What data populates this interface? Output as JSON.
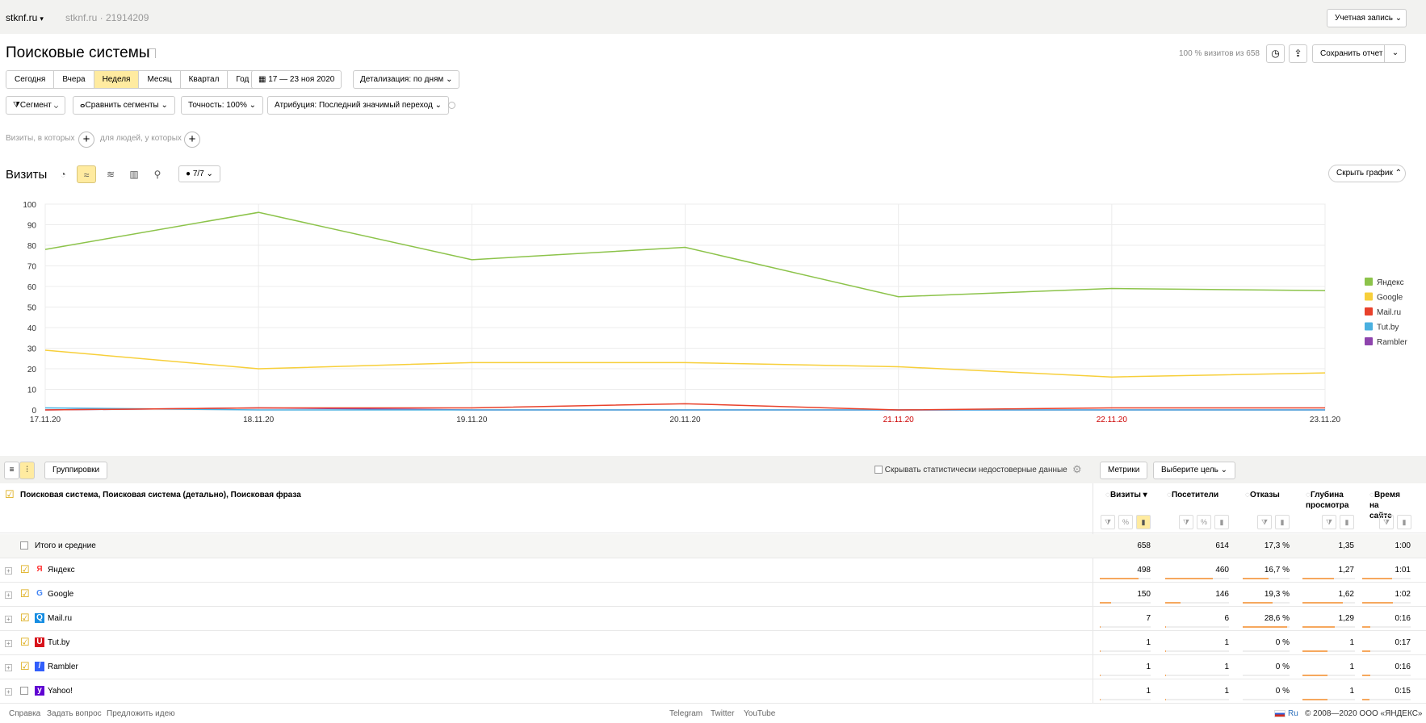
{
  "topbar": {
    "site": "stknf.ru",
    "site_id": "stknf.ru · 21914209",
    "account_label": "Учетная запись"
  },
  "report": {
    "title": "Поисковые системы",
    "visits_share": "100 % визитов из 658",
    "save_label": "Сохранить отчет"
  },
  "periods": [
    {
      "label": "Сегодня",
      "active": false
    },
    {
      "label": "Вчера",
      "active": false
    },
    {
      "label": "Неделя",
      "active": true
    },
    {
      "label": "Месяц",
      "active": false
    },
    {
      "label": "Квартал",
      "active": false
    },
    {
      "label": "Год",
      "active": false
    }
  ],
  "date_range": "17 — 23 ноя 2020",
  "detail_label": "Детализация: по дням",
  "filters": {
    "segment": "Сегмент",
    "compare": "Сравнить сегменты",
    "accuracy": "Точность: 100%",
    "attribution": "Атрибуция: Последний значимый переход"
  },
  "segment_hint": {
    "visits": "Визиты, в которых",
    "people": "для людей, у которых"
  },
  "chart_section": {
    "title": "Визиты",
    "annotations": "7/7",
    "hide_label": "Скрыть график"
  },
  "chart_data": {
    "type": "line",
    "x": [
      "17.11.20",
      "18.11.20",
      "19.11.20",
      "20.11.20",
      "21.11.20",
      "22.11.20",
      "23.11.20"
    ],
    "weekend_x": [
      "21.11.20",
      "22.11.20"
    ],
    "ylim": [
      0,
      100
    ],
    "yticks": [
      0,
      10,
      20,
      30,
      40,
      50,
      60,
      70,
      80,
      90,
      100
    ],
    "grid": true,
    "legend_position": "right",
    "series": [
      {
        "name": "Яндекс",
        "color": "#8cc34a",
        "values": [
          78,
          96,
          73,
          79,
          55,
          59,
          58
        ]
      },
      {
        "name": "Google",
        "color": "#f7cf3a",
        "values": [
          29,
          20,
          23,
          23,
          21,
          16,
          18
        ]
      },
      {
        "name": "Mail.ru",
        "color": "#e8412b",
        "values": [
          0,
          1,
          1,
          3,
          0,
          1,
          1
        ]
      },
      {
        "name": "Tut.by",
        "color": "#4ab0e0",
        "values": [
          1,
          0,
          0,
          0,
          0,
          0,
          0
        ]
      },
      {
        "name": "Rambler",
        "color": "#8e44ad",
        "values": [
          0,
          1,
          0,
          0,
          0,
          0,
          0
        ]
      }
    ]
  },
  "table_toolbar": {
    "groupings": "Группировки",
    "hide_unreliable": "Скрывать статистически недостоверные данные",
    "metrics": "Метрики",
    "goal": "Выберите цель"
  },
  "table": {
    "dims_title": "Поисковая система, Поисковая система (детально), Поисковая фраза",
    "columns": [
      "Визиты",
      "Посетители",
      "Отказы",
      "Глубина просмотра",
      "Время на сайте"
    ],
    "total": {
      "label": "Итого и средние",
      "values": [
        "658",
        "614",
        "17,3 %",
        "1,35",
        "1:00"
      ]
    },
    "rows": [
      {
        "label": "Яндекс",
        "icon": "yandex-icon",
        "checked": true,
        "values": [
          "498",
          "460",
          "16,7 %",
          "1,27",
          "1:01"
        ],
        "share": [
          0.76,
          0.75,
          0.55,
          0.6,
          0.62
        ]
      },
      {
        "label": "Google",
        "icon": "google-icon",
        "checked": true,
        "values": [
          "150",
          "146",
          "19,3 %",
          "1,62",
          "1:02"
        ],
        "share": [
          0.23,
          0.24,
          0.64,
          0.77,
          0.63
        ]
      },
      {
        "label": "Mail.ru",
        "icon": "mailru-icon",
        "checked": true,
        "values": [
          "7",
          "6",
          "28,6 %",
          "1,29",
          "0:16"
        ],
        "share": [
          0.01,
          0.01,
          0.95,
          0.61,
          0.16
        ]
      },
      {
        "label": "Tut.by",
        "icon": "tutby-icon",
        "checked": true,
        "values": [
          "1",
          "1",
          "0 %",
          "1",
          "0:17"
        ],
        "share": [
          0.002,
          0.002,
          0,
          0.47,
          0.17
        ]
      },
      {
        "label": "Rambler",
        "icon": "rambler-icon",
        "checked": true,
        "values": [
          "1",
          "1",
          "0 %",
          "1",
          "0:16"
        ],
        "share": [
          0.002,
          0.002,
          0,
          0.47,
          0.16
        ]
      },
      {
        "label": "Yahoo!",
        "icon": "yahoo-icon",
        "checked": false,
        "values": [
          "1",
          "1",
          "0 %",
          "1",
          "0:15"
        ],
        "share": [
          0.002,
          0.002,
          0,
          0.47,
          0.15
        ]
      }
    ]
  },
  "footer": {
    "help": "Справка",
    "ask": "Задать вопрос",
    "idea": "Предложить идею",
    "telegram": "Telegram",
    "twitter": "Twitter",
    "youtube": "YouTube",
    "lang": "Ru",
    "copyright": "© 2008—2020 ООО «ЯНДЕКС»"
  }
}
